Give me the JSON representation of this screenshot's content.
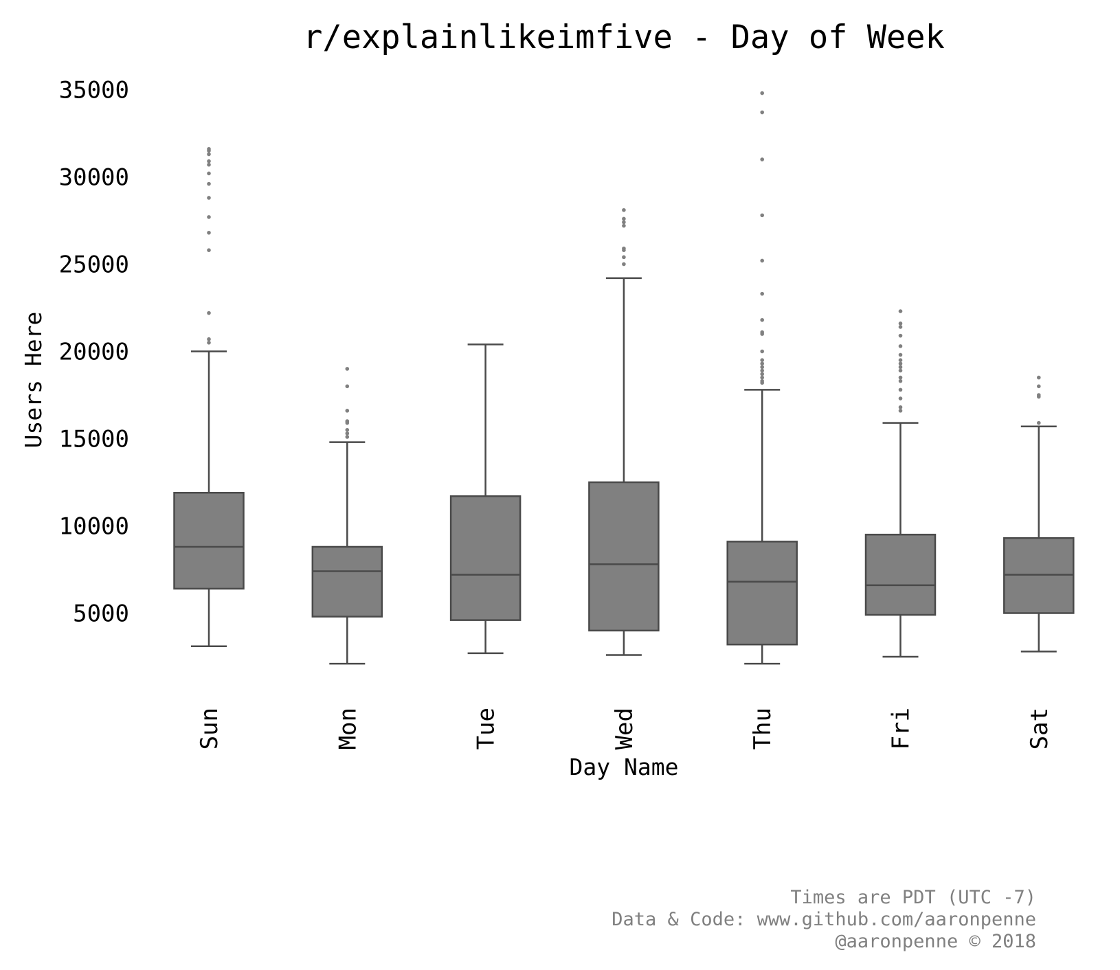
{
  "chart_data": {
    "type": "box",
    "title": "r/explainlikeimfive - Day of Week",
    "xlabel": "Day Name",
    "ylabel": "Users Here",
    "categories": [
      "Sun",
      "Mon",
      "Tue",
      "Wed",
      "Thu",
      "Fri",
      "Sat"
    ],
    "yticks": [
      5000,
      10000,
      15000,
      20000,
      25000,
      30000,
      35000
    ],
    "ylim": [
      1000,
      36000
    ],
    "grid": false,
    "boxes": [
      {
        "category": "Sun",
        "whisker_low": 3100,
        "q1": 6400,
        "median": 8800,
        "q3": 11900,
        "whisker_high": 20000,
        "outliers": [
          20500,
          20700,
          22200,
          25800,
          26800,
          27700,
          28800,
          29600,
          30200,
          30700,
          30900,
          31300,
          31500,
          31600
        ]
      },
      {
        "category": "Mon",
        "whisker_low": 2100,
        "q1": 4800,
        "median": 7400,
        "q3": 8800,
        "whisker_high": 14800,
        "outliers": [
          15100,
          15300,
          15500,
          15900,
          16000,
          16600,
          18000,
          19000
        ]
      },
      {
        "category": "Tue",
        "whisker_low": 2700,
        "q1": 4600,
        "median": 7200,
        "q3": 11700,
        "whisker_high": 20400,
        "outliers": []
      },
      {
        "category": "Wed",
        "whisker_low": 2600,
        "q1": 4000,
        "median": 7800,
        "q3": 12500,
        "whisker_high": 24200,
        "outliers": [
          25000,
          25400,
          25800,
          25900,
          27200,
          27400,
          27600,
          28100
        ]
      },
      {
        "category": "Thu",
        "whisker_low": 2100,
        "q1": 3200,
        "median": 6800,
        "q3": 9100,
        "whisker_high": 17800,
        "outliers": [
          18200,
          18300,
          18500,
          18700,
          18900,
          19100,
          19300,
          19500,
          20000,
          21000,
          21100,
          21800,
          23300,
          25200,
          27800,
          31000,
          33700,
          34800
        ]
      },
      {
        "category": "Fri",
        "whisker_low": 2500,
        "q1": 4900,
        "median": 6600,
        "q3": 9500,
        "whisker_high": 15900,
        "outliers": [
          16600,
          16800,
          17300,
          17800,
          18300,
          18500,
          18900,
          19100,
          19300,
          19500,
          19800,
          20300,
          20900,
          21400,
          21600,
          22300
        ]
      },
      {
        "category": "Sat",
        "whisker_low": 2800,
        "q1": 5000,
        "median": 7200,
        "q3": 9300,
        "whisker_high": 15700,
        "outliers": [
          15900,
          17400,
          17500,
          18000,
          18500
        ]
      }
    ],
    "box_color": "#808080",
    "line_color": "#4a4a4a",
    "outlier_color": "#808080"
  },
  "footer": {
    "lines": [
      "Times are PDT (UTC -7)",
      "Data & Code: www.github.com/aaronpenne",
      "@aaronpenne © 2018"
    ],
    "color": "#808080"
  }
}
